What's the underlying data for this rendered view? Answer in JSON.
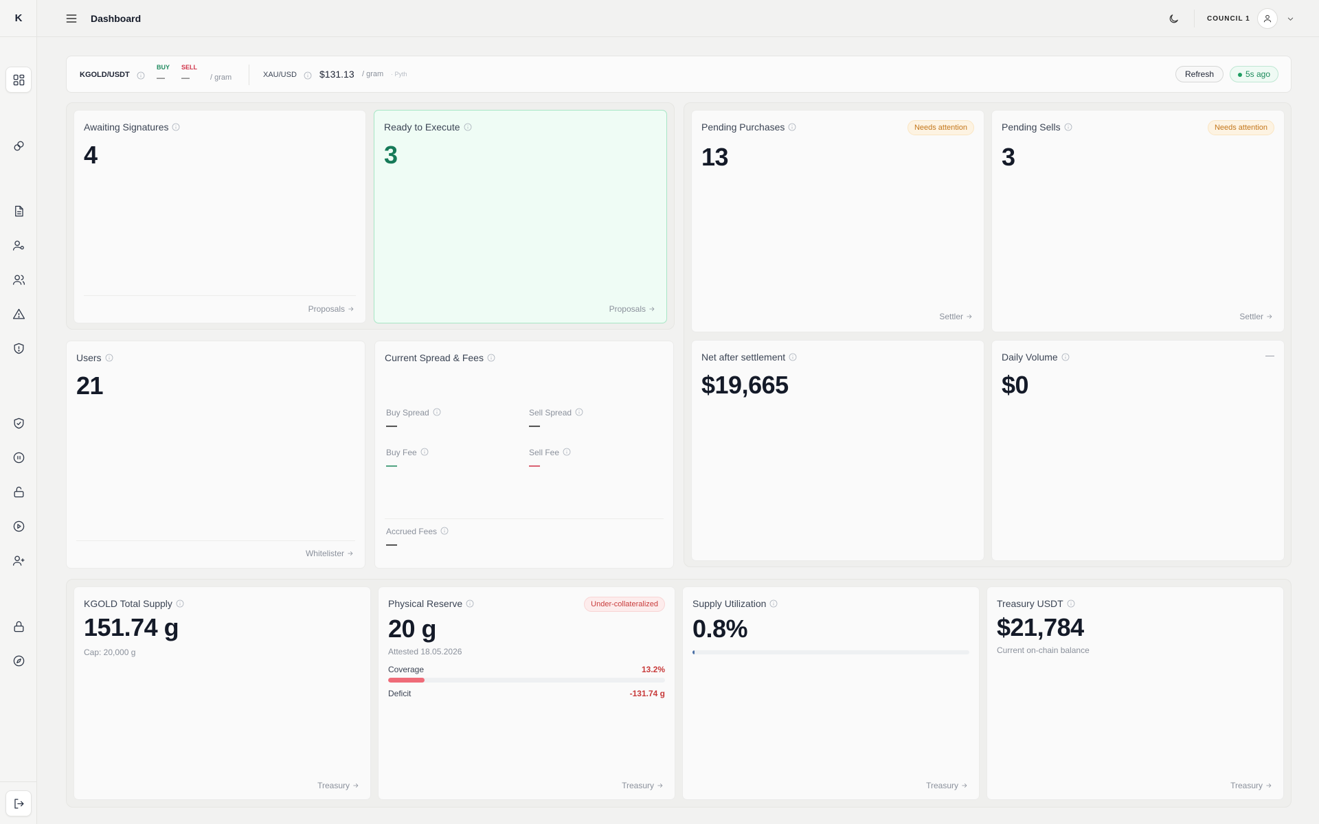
{
  "app": {
    "logo": "K",
    "page_title": "Dashboard",
    "account_label": "COUNCIL 1"
  },
  "sidebar": {
    "icons": [
      "dashboard-icon",
      "link-icon",
      "document-icon",
      "user-settings-icon",
      "users-icon",
      "alert-triangle-icon",
      "shield-alert-icon",
      "shield-check-icon",
      "pause-icon",
      "unlock-icon",
      "play-icon",
      "user-plus-icon",
      "lock-icon",
      "compass-icon",
      "logout-icon"
    ]
  },
  "ticker": {
    "pair": "KGOLD/USDT",
    "buy_label": "BUY",
    "sell_label": "SELL",
    "buy_value": "—",
    "sell_value": "—",
    "unit": "/ gram",
    "xau_pair": "XAU/USD",
    "xau_price": "$131.13",
    "xau_unit": "/ gram",
    "source": "· Pyth",
    "refresh_label": "Refresh",
    "updated": "5s ago"
  },
  "cards": {
    "awaiting": {
      "title": "Awaiting Signatures",
      "value": "4",
      "link": "Proposals"
    },
    "ready": {
      "title": "Ready to Execute",
      "value": "3",
      "link": "Proposals"
    },
    "pending_purchases": {
      "title": "Pending Purchases",
      "value": "13",
      "badge": "Needs attention",
      "link": "Settler"
    },
    "pending_sells": {
      "title": "Pending Sells",
      "value": "3",
      "badge": "Needs attention",
      "link": "Settler"
    },
    "users": {
      "title": "Users",
      "value": "21",
      "link": "Whitelister"
    },
    "spread": {
      "title": "Current Spread & Fees",
      "buy_spread_label": "Buy Spread",
      "buy_spread": "—",
      "sell_spread_label": "Sell Spread",
      "sell_spread": "—",
      "buy_fee_label": "Buy Fee",
      "buy_fee": "—",
      "sell_fee_label": "Sell Fee",
      "sell_fee": "—",
      "accrued_label": "Accrued Fees",
      "accrued": "—"
    },
    "net": {
      "title": "Net after settlement",
      "value": "$19,665"
    },
    "daily_volume": {
      "title": "Daily Volume",
      "value": "$0",
      "corner": "—"
    },
    "total_supply": {
      "title": "KGOLD Total Supply",
      "value": "151.74 g",
      "sub": "Cap: 20,000 g",
      "link": "Treasury"
    },
    "reserve": {
      "title": "Physical Reserve",
      "badge": "Under-collateralized",
      "value": "20 g",
      "sub": "Attested 18.05.2026",
      "coverage_label": "Coverage",
      "coverage": "13.2%",
      "coverage_fraction": 0.132,
      "deficit_label": "Deficit",
      "deficit": "-131.74 g",
      "link": "Treasury"
    },
    "utilization": {
      "title": "Supply Utilization",
      "value": "0.8%",
      "fraction": 0.008,
      "link": "Treasury"
    },
    "treasury": {
      "title": "Treasury USDT",
      "value": "$21,784",
      "sub": "Current on-chain balance",
      "link": "Treasury"
    }
  },
  "colors": {
    "accent_green": "#167a58",
    "buy_green": "#1f8a5e",
    "sell_red": "#d0344a",
    "warning": "#c4771b",
    "danger": "#c83b3b",
    "coverage_bar": "#ef6b78",
    "utilization_bar": "#4a6fa5"
  }
}
